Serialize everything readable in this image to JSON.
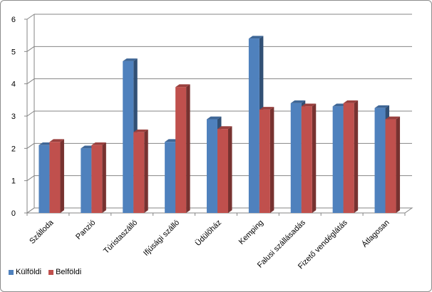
{
  "chart_data": {
    "type": "bar",
    "title": "",
    "xlabel": "",
    "ylabel": "",
    "ylim": [
      0,
      6
    ],
    "yticks": [
      0,
      1,
      2,
      3,
      4,
      5,
      6
    ],
    "grid": true,
    "legend_position": "bottom-left",
    "categories": [
      "Szálloda",
      "Panzió",
      "Túristaszálló",
      "Ifjúsági szálló",
      "Üdülőház",
      "Kemping",
      "Falusi szállásadás",
      "Fizető vendéglátás",
      "Átlagosan"
    ],
    "series": [
      {
        "name": "Külföldi",
        "color": "#4f81bd",
        "values": [
          2.1,
          2.0,
          4.7,
          2.2,
          2.9,
          5.4,
          3.4,
          3.3,
          3.25
        ]
      },
      {
        "name": "Belföldi",
        "color": "#c0504d",
        "values": [
          2.2,
          2.1,
          2.5,
          3.9,
          2.6,
          3.2,
          3.3,
          3.4,
          2.9
        ]
      }
    ]
  }
}
